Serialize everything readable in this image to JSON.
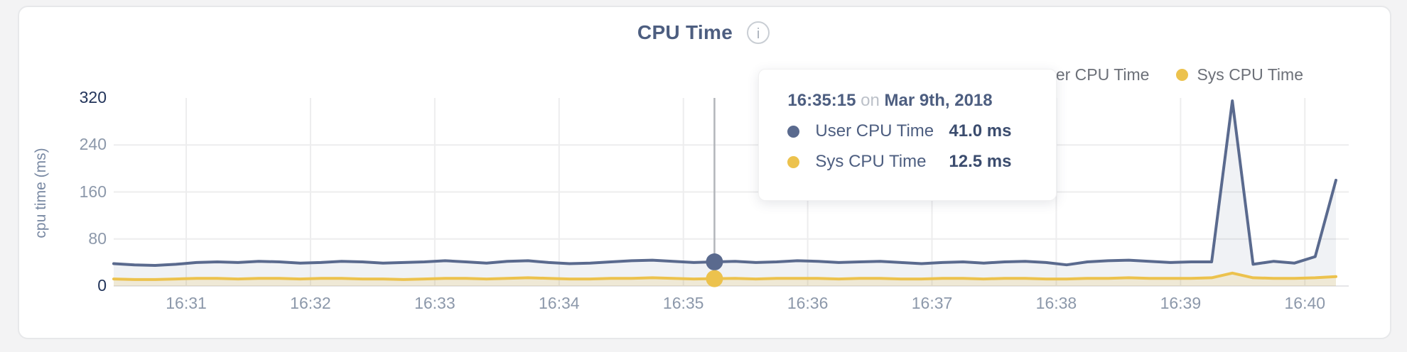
{
  "chart": {
    "title": "CPU Time",
    "info_icon": "i",
    "ylabel": "cpu time (ms)"
  },
  "legend": {
    "items": [
      {
        "label": "User CPU Time",
        "color": "#5a6a8e"
      },
      {
        "label": "Sys CPU Time",
        "color": "#ecc24d"
      }
    ]
  },
  "tooltip": {
    "time": "16:35:15",
    "connector": "on",
    "date": "Mar 9th, 2018",
    "rows": [
      {
        "label": "User CPU Time",
        "value": "41.0 ms",
        "color": "#5a6a8e"
      },
      {
        "label": "Sys CPU Time",
        "value": "12.5 ms",
        "color": "#ecc24d"
      }
    ]
  },
  "colors": {
    "user_line": "#5a6a8e",
    "user_fill": "rgba(92,108,143,0.09)",
    "sys_line": "#ecc24d",
    "sys_fill": "rgba(237,195,80,0.18)",
    "grid": "#ededee",
    "axis_line": "#e6e6e8",
    "crosshair": "#b2b5ba",
    "tick_major": "#22345a",
    "tick_minor": "#8c98aa"
  },
  "chart_data": {
    "type": "area",
    "title": "CPU Time",
    "xlabel": "",
    "ylabel": "cpu time (ms)",
    "ylim": [
      0,
      320
    ],
    "yticks": [
      0,
      80,
      160,
      240,
      320
    ],
    "xticks": [
      "16:31",
      "16:32",
      "16:33",
      "16:34",
      "16:35",
      "16:36",
      "16:37",
      "16:38",
      "16:39",
      "16:40"
    ],
    "x_start": "16:30:25",
    "x_interval_seconds": 10,
    "grid": true,
    "legend_position": "top-right",
    "hover_index": 29,
    "series": [
      {
        "name": "User CPU Time",
        "color": "#5a6a8e",
        "values": [
          38,
          36,
          35,
          37,
          40,
          41,
          40,
          42,
          41,
          39,
          40,
          42,
          41,
          39,
          40,
          41,
          43,
          41,
          39,
          42,
          43,
          40,
          38,
          39,
          41,
          43,
          44,
          42,
          40,
          41,
          42,
          40,
          41,
          43,
          42,
          40,
          41,
          42,
          40,
          38,
          40,
          41,
          39,
          41,
          42,
          40,
          36,
          41,
          43,
          44,
          42,
          40,
          41,
          41,
          315,
          37,
          42,
          39,
          50,
          180
        ]
      },
      {
        "name": "Sys CPU Time",
        "color": "#ecc24d",
        "values": [
          12,
          11,
          11,
          12,
          13,
          13,
          12,
          13,
          13,
          12,
          13,
          13,
          12,
          12,
          11,
          12,
          13,
          13,
          12,
          13,
          14,
          13,
          12,
          12,
          13,
          13,
          14,
          13,
          12,
          12.5,
          13,
          12,
          13,
          13,
          13,
          12,
          13,
          13,
          12,
          12,
          13,
          13,
          12,
          13,
          13,
          12,
          12,
          13,
          13,
          14,
          13,
          13,
          13,
          14,
          22,
          14,
          13,
          13,
          14,
          16
        ]
      }
    ]
  }
}
